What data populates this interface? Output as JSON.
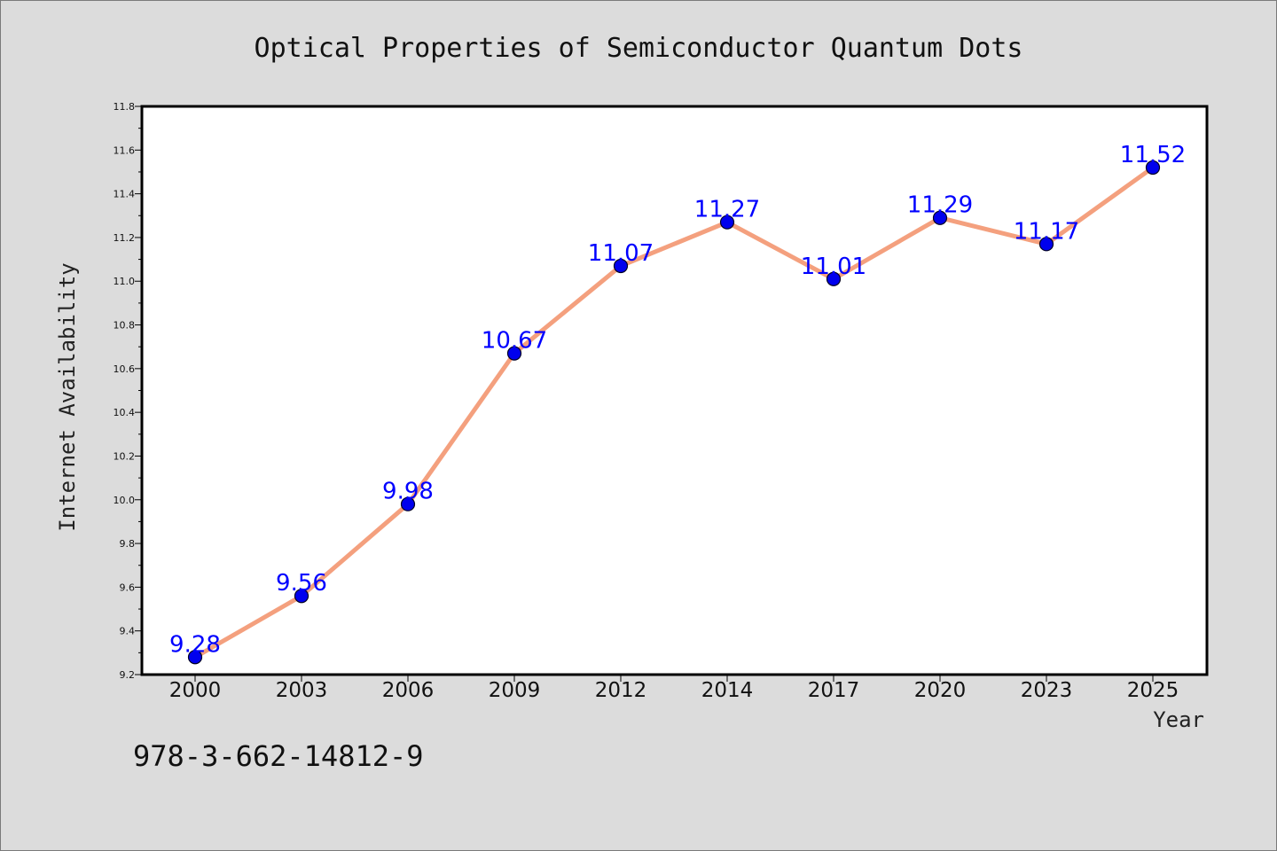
{
  "chart_data": {
    "type": "line",
    "title": "Optical Properties of Semiconductor Quantum Dots",
    "xlabel": "Year",
    "ylabel": "Internet Availability",
    "categories": [
      "2000",
      "2003",
      "2006",
      "2009",
      "2012",
      "2014",
      "2017",
      "2020",
      "2023",
      "2025"
    ],
    "values": [
      9.28,
      9.56,
      9.98,
      10.67,
      11.07,
      11.27,
      11.01,
      11.29,
      11.17,
      11.52
    ],
    "data_labels": [
      "9.28",
      "9.56",
      "9.98",
      "10.67",
      "11.07",
      "11.27",
      "11.01",
      "11.29",
      "11.17",
      "11.52"
    ],
    "ylim": [
      9.2,
      11.8
    ],
    "yticks": [
      "9.2",
      "9.4",
      "9.6",
      "9.8",
      "10.0",
      "10.2",
      "10.4",
      "10.6",
      "10.8",
      "11.0",
      "11.2",
      "11.4",
      "11.6",
      "11.8"
    ],
    "grid": false,
    "legend": "none",
    "colors": {
      "line": "#f4a07e",
      "marker": "#0000ee",
      "data_label": "#0000ff",
      "plot_background": "#ffffff",
      "figure_background": "#dcdcdc"
    }
  },
  "footer": {
    "isbn": "978-3-662-14812-9"
  }
}
